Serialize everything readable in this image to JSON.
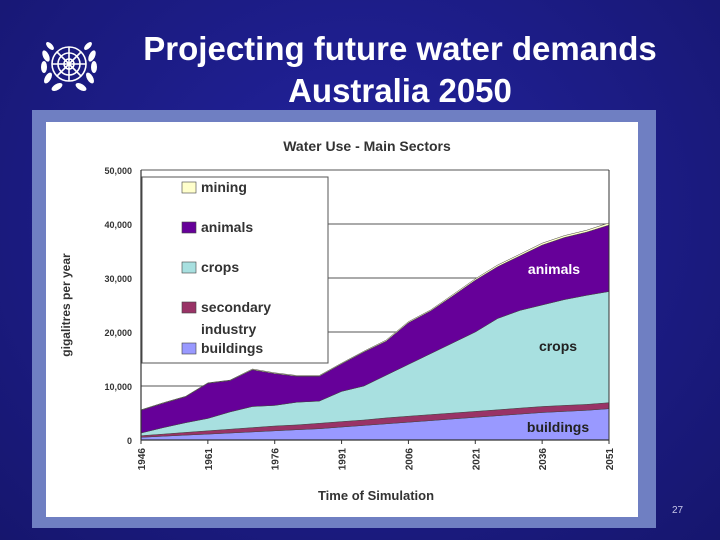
{
  "slide": {
    "title_line1": "Projecting future water demands",
    "title_line2": "Australia 2050",
    "page_number": "27"
  },
  "chart_data": {
    "type": "area",
    "stacked": true,
    "title": "Water Use - Main Sectors",
    "xlabel": "Time of Simulation",
    "ylabel": "gigalitres per year",
    "ylim": [
      0,
      50000
    ],
    "yticks": [
      0,
      10000,
      20000,
      30000,
      40000,
      50000
    ],
    "ytick_labels": [
      "0",
      "10,000",
      "20,000",
      "30,000",
      "40,000",
      "50,000"
    ],
    "xlim": [
      1946,
      2051
    ],
    "xtick_labels": [
      "1946",
      "1961",
      "1976",
      "1991",
      "2006",
      "2021",
      "2036",
      "2051"
    ],
    "x": [
      1946,
      1951,
      1956,
      1961,
      1966,
      1971,
      1976,
      1981,
      1986,
      1991,
      1996,
      2001,
      2006,
      2011,
      2016,
      2021,
      2026,
      2031,
      2036,
      2041,
      2046,
      2051
    ],
    "series": [
      {
        "name": "buildings",
        "color": "#9999ff",
        "values": [
          500,
          700,
          900,
          1100,
          1300,
          1500,
          1700,
          1900,
          2100,
          2400,
          2700,
          3000,
          3300,
          3600,
          3900,
          4200,
          4500,
          4800,
          5100,
          5300,
          5500,
          5800
        ]
      },
      {
        "name": "secondary industry",
        "color": "#993366",
        "values": [
          300,
          400,
          500,
          600,
          700,
          800,
          900,
          900,
          1000,
          1000,
          1000,
          1100,
          1100,
          1100,
          1100,
          1100,
          1100,
          1100,
          1100,
          1100,
          1100,
          1100
        ]
      },
      {
        "name": "crops",
        "color": "#a8e0e0",
        "values": [
          500,
          1200,
          1800,
          2300,
          3200,
          3900,
          3800,
          4200,
          4100,
          5600,
          6300,
          7900,
          9600,
          11300,
          13000,
          14700,
          16900,
          18100,
          18800,
          19600,
          20200,
          20600
        ]
      },
      {
        "name": "animals",
        "color": "#660099",
        "values": [
          4200,
          4500,
          4800,
          6500,
          5800,
          6800,
          5900,
          4800,
          4600,
          5100,
          6300,
          6300,
          7700,
          7900,
          8700,
          9600,
          9600,
          10100,
          11100,
          11500,
          11700,
          12300
        ]
      },
      {
        "name": "mining",
        "color": "#ffffcc",
        "values": [
          100,
          100,
          100,
          100,
          100,
          150,
          150,
          150,
          150,
          150,
          150,
          200,
          200,
          200,
          250,
          250,
          300,
          300,
          350,
          350,
          350,
          400
        ]
      }
    ],
    "legend": {
      "placement": "top-left",
      "entries": [
        "mining",
        "animals",
        "crops",
        "secondary",
        "industry",
        "buildings"
      ]
    },
    "annotations": [
      "animals",
      "crops",
      "buildings"
    ]
  }
}
